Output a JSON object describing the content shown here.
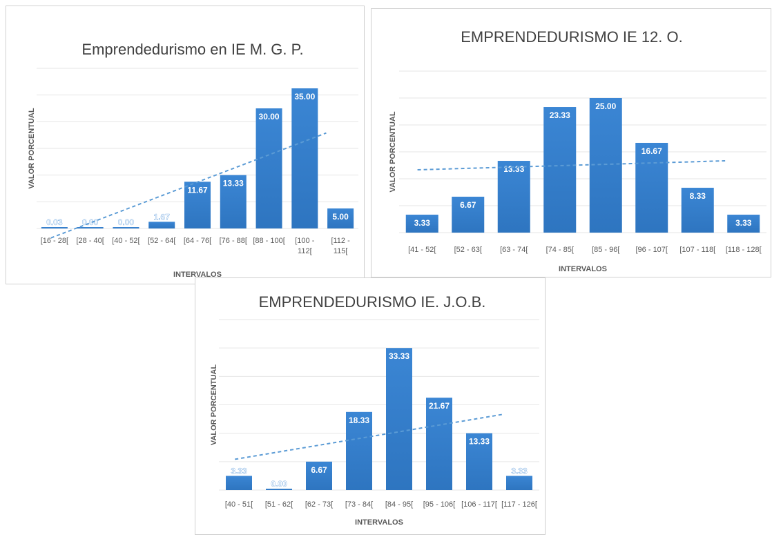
{
  "chart_data": [
    {
      "type": "bar",
      "title": "Emprendedurismo en  IE M. G. P.",
      "xlabel": "INTERVALOS",
      "ylabel": "VALOR PORCENTUAL",
      "categories": [
        "[16 - 28[",
        "[28 - 40[",
        "[40 - 52[",
        "[52 - 64[",
        "[64 - 76[",
        "[76 - 88[",
        "[88 - 100[",
        "[100 - 112[",
        "[112 - 115["
      ],
      "values": [
        0.03,
        0.0,
        0.0,
        1.67,
        11.67,
        13.33,
        30.0,
        35.0,
        5.0
      ],
      "value_labels": [
        "0.03",
        "0.00",
        "0.00",
        "1.67",
        "11.67",
        "13.33",
        "30.00",
        "35.00",
        "5.00"
      ],
      "ylim": [
        0,
        40
      ],
      "trendline": "linear dashed",
      "grid": true,
      "legend": "none"
    },
    {
      "type": "bar",
      "title": "EMPRENDEDURISMO IE 12.  O.",
      "xlabel": "INTERVALOS",
      "ylabel": "VALOR PORCENTUAL",
      "categories": [
        "[41 - 52[",
        "[52 - 63[",
        "[63 - 74[",
        "[74 - 85[",
        "[85 - 96[",
        "[96 - 107[",
        "[107 - 118[",
        "[118 - 128["
      ],
      "values": [
        3.33,
        6.67,
        13.33,
        23.33,
        25.0,
        16.67,
        8.33,
        3.33
      ],
      "value_labels": [
        "3.33",
        "6.67",
        "13.33",
        "23.33",
        "25.00",
        "16.67",
        "8.33",
        "3.33"
      ],
      "ylim": [
        0,
        30
      ],
      "trendline": "linear dashed",
      "grid": true,
      "legend": "none"
    },
    {
      "type": "bar",
      "title": "EMPRENDEDURISMO IE. J.O.B.",
      "xlabel": "INTERVALOS",
      "ylabel": "VALOR PORCENTUAL",
      "categories": [
        "[40 - 51[",
        "[51 - 62[",
        "[62 - 73[",
        "[73 - 84[",
        "[84 - 95[",
        "[95 - 106[",
        "[106 - 117[",
        "[117 - 126["
      ],
      "values": [
        3.33,
        0.0,
        6.67,
        18.33,
        33.33,
        21.67,
        13.33,
        3.33
      ],
      "value_labels": [
        "3.33",
        "0.00",
        "6.67",
        "18.33",
        "33.33",
        "21.67",
        "13.33",
        "3.33"
      ],
      "ylim": [
        0,
        40
      ],
      "trendline": "linear dashed",
      "grid": true,
      "legend": "none"
    }
  ],
  "colors": {
    "bar": "#3b86d4",
    "bar_dark": "#2e75c0",
    "trend": "#5b9bd5",
    "grid": "#e6e6e6",
    "title": "#404040",
    "axis_text": "#595959"
  }
}
